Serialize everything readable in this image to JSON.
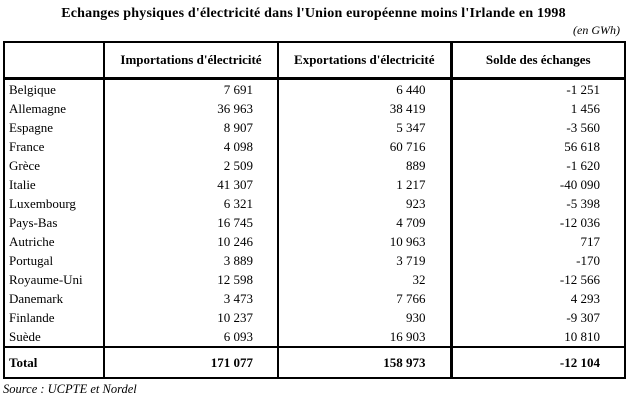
{
  "title": "Echanges physiques d'électricité dans l'Union européenne moins l'Irlande en 1998",
  "unit_note": "(en GWh)",
  "source_note": "Source : UCPTE et Nordel",
  "chart_data": {
    "type": "table",
    "columns": [
      "",
      "Importations d'électricité",
      "Exportations d'électricité",
      "Solde des échanges"
    ],
    "rows": [
      {
        "country": "Belgique",
        "imports": "7 691",
        "exports": "6 440",
        "solde": "-1 251"
      },
      {
        "country": "Allemagne",
        "imports": "36 963",
        "exports": "38 419",
        "solde": "1 456"
      },
      {
        "country": "Espagne",
        "imports": "8 907",
        "exports": "5 347",
        "solde": "-3 560"
      },
      {
        "country": "France",
        "imports": "4 098",
        "exports": "60 716",
        "solde": "56 618"
      },
      {
        "country": "Grèce",
        "imports": "2 509",
        "exports": "889",
        "solde": "-1 620"
      },
      {
        "country": "Italie",
        "imports": "41 307",
        "exports": "1 217",
        "solde": "-40 090"
      },
      {
        "country": "Luxembourg",
        "imports": "6 321",
        "exports": "923",
        "solde": "-5 398"
      },
      {
        "country": "Pays-Bas",
        "imports": "16 745",
        "exports": "4 709",
        "solde": "-12 036"
      },
      {
        "country": "Autriche",
        "imports": "10 246",
        "exports": "10 963",
        "solde": "717"
      },
      {
        "country": "Portugal",
        "imports": "3 889",
        "exports": "3 719",
        "solde": "-170"
      },
      {
        "country": "Royaume-Uni",
        "imports": "12 598",
        "exports": "32",
        "solde": "-12 566"
      },
      {
        "country": "Danemark",
        "imports": "3 473",
        "exports": "7 766",
        "solde": "4 293"
      },
      {
        "country": "Finlande",
        "imports": "10 237",
        "exports": "930",
        "solde": "-9 307"
      },
      {
        "country": "Suède",
        "imports": "6 093",
        "exports": "16 903",
        "solde": "10 810"
      }
    ],
    "total": {
      "country": "Total",
      "imports": "171 077",
      "exports": "158 973",
      "solde": "-12 104"
    }
  }
}
